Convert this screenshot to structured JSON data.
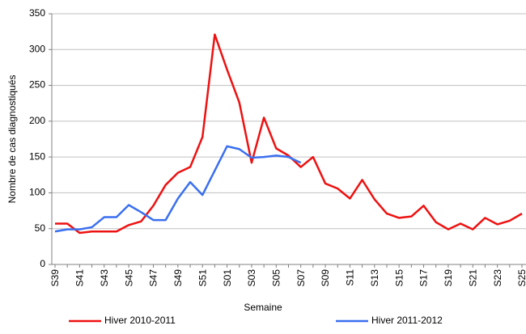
{
  "chart_data": {
    "type": "line",
    "x_label": "Semaine",
    "y_label": "Nombre de cas diagnostiqués",
    "categories": [
      "S39",
      null,
      "S41",
      null,
      "S43",
      null,
      "S45",
      null,
      "S47",
      null,
      "S49",
      null,
      "S51",
      null,
      "S01",
      null,
      "S03",
      null,
      "S05",
      null,
      "S07",
      null,
      "S09",
      null,
      "S11",
      null,
      "S13",
      null,
      "S15",
      null,
      "S17",
      null,
      "S19",
      null,
      "S21",
      null,
      "S23",
      null,
      "S25"
    ],
    "series": [
      {
        "name": "Hiver 2010-2011",
        "color": "#ee1111",
        "values": [
          57,
          57,
          44,
          46,
          46,
          46,
          55,
          60,
          82,
          111,
          128,
          136,
          178,
          321,
          272,
          226,
          142,
          205,
          162,
          152,
          136,
          150,
          113,
          106,
          92,
          118,
          91,
          71,
          65,
          67,
          82,
          59,
          49,
          57,
          49,
          65,
          56,
          61,
          71
        ]
      },
      {
        "name": "Hiver 2011-2012",
        "color": "#3a6ff0",
        "values": [
          46,
          49,
          49,
          52,
          66,
          66,
          83,
          73,
          62,
          62,
          92,
          115,
          97,
          131,
          165,
          161,
          149,
          150,
          152,
          150,
          142,
          null,
          null,
          null,
          null,
          null,
          null,
          null,
          null,
          null,
          null,
          null,
          null,
          null,
          null,
          null,
          null,
          null,
          null
        ]
      }
    ],
    "ylim": [
      0,
      350
    ],
    "yticks": [
      0,
      50,
      100,
      150,
      200,
      250,
      300,
      350
    ],
    "grid": true,
    "legend": "bottom"
  }
}
